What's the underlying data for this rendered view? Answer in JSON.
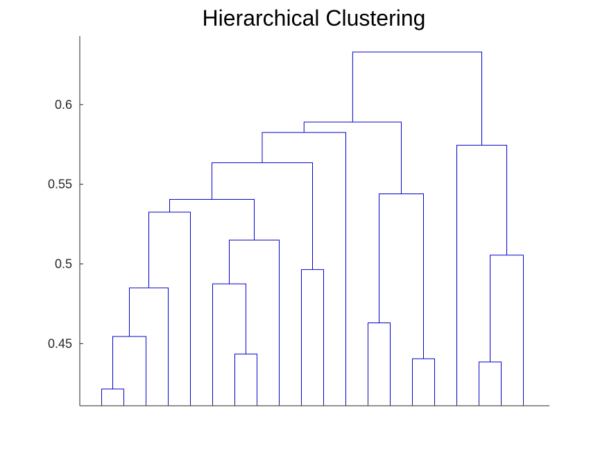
{
  "chart_data": {
    "type": "dendrogram",
    "title": "Hierarchical Clustering",
    "xlabel": "",
    "ylabel": "",
    "ylim": [
      0.411,
      0.643
    ],
    "yticks": [
      0.45,
      0.5,
      0.55,
      0.6
    ],
    "ytick_labels": [
      "0.45",
      "0.5",
      "0.55",
      "0.6"
    ],
    "leaf_count": 20,
    "line_color": "#0000cc",
    "merges": [
      {
        "left": "L1",
        "right": "L2",
        "height": 0.4215
      },
      {
        "left": "M1",
        "right": "L3",
        "height": 0.4545
      },
      {
        "left": "M2",
        "right": "L4",
        "height": 0.485
      },
      {
        "left": "M3",
        "right": "L5",
        "height": 0.5325
      },
      {
        "left": "L7",
        "right": "L8",
        "height": 0.4435
      },
      {
        "left": "L6",
        "right": "M5",
        "height": 0.4875
      },
      {
        "left": "M6",
        "right": "L9",
        "height": 0.515
      },
      {
        "left": "M4",
        "right": "M7",
        "height": 0.5405
      },
      {
        "left": "L10",
        "right": "L11",
        "height": 0.4965
      },
      {
        "left": "M8",
        "right": "M9",
        "height": 0.5635
      },
      {
        "left": "M10",
        "right": "L12",
        "height": 0.5825
      },
      {
        "left": "L13",
        "right": "L14",
        "height": 0.463
      },
      {
        "left": "L15",
        "right": "L16",
        "height": 0.4405
      },
      {
        "left": "M12",
        "right": "M13",
        "height": 0.544
      },
      {
        "left": "M11",
        "right": "M14",
        "height": 0.589
      },
      {
        "left": "L18",
        "right": "L19",
        "height": 0.4385
      },
      {
        "left": "M16",
        "right": "L20",
        "height": 0.5055
      },
      {
        "left": "L17",
        "right": "M17",
        "height": 0.5745
      },
      {
        "left": "M15",
        "right": "M18",
        "height": 0.633
      }
    ]
  }
}
